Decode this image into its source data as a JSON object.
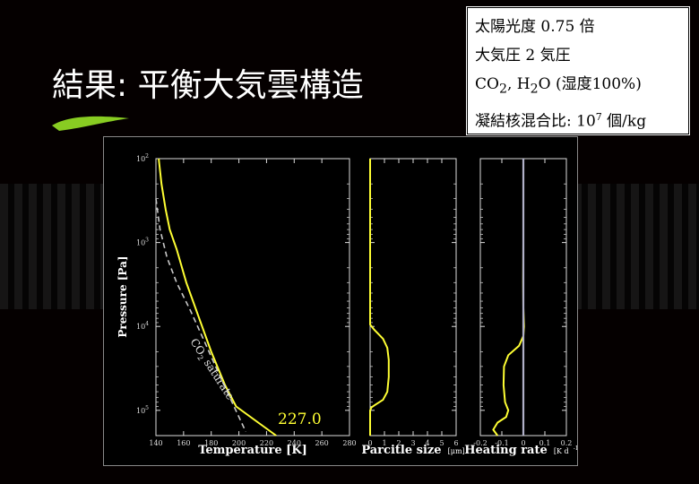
{
  "title": "結果: 平衡大気雲構造",
  "conditions": {
    "solar": "太陽光度  0.75 倍",
    "pressure": "大気圧 2 気圧",
    "comp_pre": "CO",
    "comp_sub1": "2",
    "comp_mid": ", H",
    "comp_sub2": "2",
    "comp_post": "O (湿度100%)",
    "nuclei_pre": "凝結核混合比: 10",
    "nuclei_sup": "7",
    "nuclei_post": " 個/kg"
  },
  "colors": {
    "profile": "#ffff33",
    "saturation": "#c8c8c8",
    "zero_line": "#b0b0c8",
    "title_leaf": "#88cc22"
  },
  "chart_data": [
    {
      "type": "line",
      "title": "",
      "xlabel": "Temperature [K]",
      "ylabel": "Pressure [Pa]",
      "xlim": [
        140,
        280
      ],
      "ylim": [
        100,
        200000
      ],
      "yscale": "log",
      "xticks": [
        "140",
        "160",
        "180",
        "200",
        "220",
        "240",
        "260",
        "280"
      ],
      "yticks": [
        {
          "base": "10",
          "exp": "2",
          "value": 100
        },
        {
          "base": "10",
          "exp": "3",
          "value": 1000
        },
        {
          "base": "10",
          "exp": "4",
          "value": 10000
        },
        {
          "base": "10",
          "exp": "5",
          "value": 100000
        }
      ],
      "annotation_surface": "227.0",
      "annotation_curve_pre": "CO",
      "annotation_curve_sub": "2",
      "annotation_curve_post": " saturate",
      "series": [
        {
          "x": [
            142,
            144,
            147,
            150,
            155,
            162,
            170,
            180,
            190,
            198,
            214,
            227
          ],
          "y": [
            100,
            200,
            400,
            700,
            1200,
            3000,
            7000,
            20000,
            50000,
            90000,
            140000,
            200000
          ]
        },
        {
          "style": "dashed",
          "x": [
            140,
            143,
            148,
            155,
            165,
            175,
            185,
            195,
            205
          ],
          "y": [
            300,
            700,
            1500,
            3000,
            6500,
            15000,
            35000,
            80000,
            180000
          ]
        }
      ]
    },
    {
      "type": "line",
      "xlabel": "Parcitle size",
      "xunit": "[μm]",
      "xlim": [
        0,
        6
      ],
      "ylim": [
        100,
        200000
      ],
      "yscale": "log",
      "xticks": [
        "0",
        "1",
        "2",
        "3",
        "4",
        "5",
        "6"
      ],
      "series": [
        {
          "x": [
            0,
            0,
            0.3,
            0.9,
            1.2,
            1.3,
            1.3,
            1.2,
            0.9,
            0.4,
            0.1,
            0,
            0
          ],
          "y": [
            100,
            9500,
            11000,
            14000,
            18000,
            25000,
            40000,
            60000,
            75000,
            85000,
            92000,
            100000,
            200000
          ]
        }
      ]
    },
    {
      "type": "line",
      "xlabel": "Heating rate",
      "xunit": "[K d",
      "xunit_sup": "-1",
      "xunit_end": "]",
      "xlim": [
        -0.2,
        0.2
      ],
      "ylim": [
        100,
        200000
      ],
      "yscale": "log",
      "xticks": [
        "-0.2",
        "-0.1",
        "0",
        "0.1",
        "0.2"
      ],
      "series": [
        {
          "x": [
            0,
            0,
            -0.001,
            0,
            0.003,
            0,
            -0.02,
            -0.07,
            -0.09,
            -0.092,
            -0.085,
            -0.07,
            -0.08,
            -0.12,
            -0.14,
            -0.12
          ],
          "y": [
            100,
            1000,
            3000,
            6000,
            10000,
            13000,
            17000,
            22000,
            30000,
            50000,
            80000,
            100000,
            120000,
            140000,
            170000,
            200000
          ]
        },
        {
          "style": "zero",
          "x": [
            0,
            0
          ],
          "y": [
            100,
            200000
          ]
        }
      ]
    }
  ]
}
